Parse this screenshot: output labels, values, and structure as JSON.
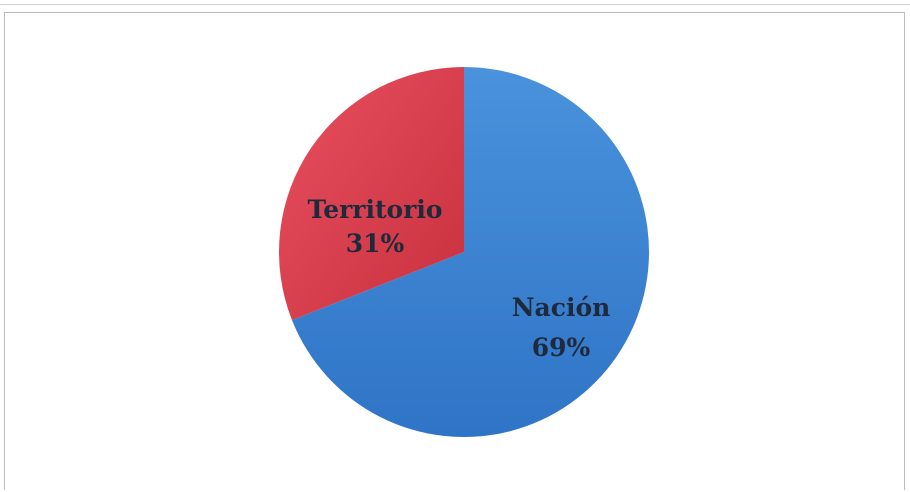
{
  "chart_data": {
    "type": "pie",
    "title": "",
    "slices": [
      {
        "label": "Nación",
        "value": 69,
        "value_label": "69%",
        "color": "#3c82d2"
      },
      {
        "label": "Territorio",
        "value": 31,
        "value_label": "31%",
        "color": "#e0404e"
      }
    ],
    "legend": "none"
  }
}
